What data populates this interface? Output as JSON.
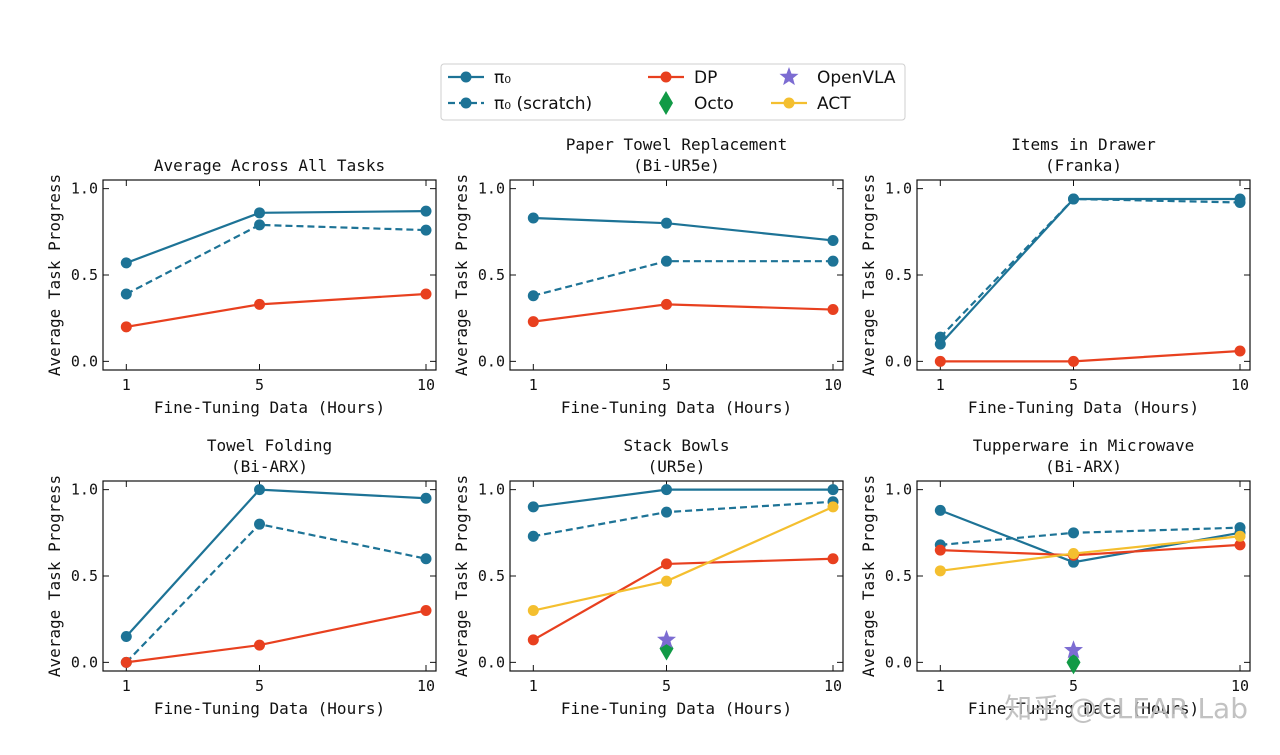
{
  "legend": {
    "entries": [
      {
        "label": "π₀",
        "color": "#1d7396",
        "style": "solid",
        "marker": "circle"
      },
      {
        "label": "π₀ (scratch)",
        "color": "#1d7396",
        "style": "dashed",
        "marker": "circle"
      },
      {
        "label": "DP",
        "color": "#e8401f",
        "style": "solid",
        "marker": "circle"
      },
      {
        "label": "Octo",
        "color": "#119a46",
        "style": "none",
        "marker": "diamond"
      },
      {
        "label": "OpenVLA",
        "color": "#7c6cd2",
        "style": "none",
        "marker": "star"
      },
      {
        "label": "ACT",
        "color": "#f4bf2f",
        "style": "solid",
        "marker": "circle"
      }
    ]
  },
  "watermark": "知乎 @CLEAR Lab",
  "chart_data": [
    {
      "type": "line",
      "title": [
        "Average Across All Tasks"
      ],
      "xlabel": "Fine-Tuning Data (Hours)",
      "ylabel": "Average Task Progress",
      "x": [
        1,
        5,
        10
      ],
      "xticks": [
        "1",
        "5",
        "10"
      ],
      "yticks": [
        "0.0",
        "0.5",
        "1.0"
      ],
      "ylim": [
        -0.05,
        1.05
      ],
      "series": [
        {
          "name": "π₀",
          "values": [
            0.57,
            0.86,
            0.87
          ]
        },
        {
          "name": "π₀ (scratch)",
          "values": [
            0.39,
            0.79,
            0.76
          ]
        },
        {
          "name": "DP",
          "values": [
            0.2,
            0.33,
            0.39
          ]
        }
      ]
    },
    {
      "type": "line",
      "title": [
        "Paper Towel Replacement",
        "(Bi-UR5e)"
      ],
      "xlabel": "Fine-Tuning Data (Hours)",
      "ylabel": "Average Task Progress",
      "x": [
        1,
        5,
        10
      ],
      "xticks": [
        "1",
        "5",
        "10"
      ],
      "yticks": [
        "0.0",
        "0.5",
        "1.0"
      ],
      "ylim": [
        -0.05,
        1.05
      ],
      "series": [
        {
          "name": "π₀",
          "values": [
            0.83,
            0.8,
            0.7
          ]
        },
        {
          "name": "π₀ (scratch)",
          "values": [
            0.38,
            0.58,
            0.58
          ]
        },
        {
          "name": "DP",
          "values": [
            0.23,
            0.33,
            0.3
          ]
        }
      ]
    },
    {
      "type": "line",
      "title": [
        "Items in Drawer",
        "(Franka)"
      ],
      "xlabel": "Fine-Tuning Data (Hours)",
      "ylabel": "Average Task Progress",
      "x": [
        1,
        5,
        10
      ],
      "xticks": [
        "1",
        "5",
        "10"
      ],
      "yticks": [
        "0.0",
        "0.5",
        "1.0"
      ],
      "ylim": [
        -0.05,
        1.05
      ],
      "series": [
        {
          "name": "π₀",
          "values": [
            0.1,
            0.94,
            0.94
          ]
        },
        {
          "name": "π₀ (scratch)",
          "values": [
            0.14,
            0.94,
            0.92
          ]
        },
        {
          "name": "DP",
          "values": [
            0.0,
            0.0,
            0.06
          ]
        }
      ]
    },
    {
      "type": "line",
      "title": [
        "Towel Folding",
        "(Bi-ARX)"
      ],
      "xlabel": "Fine-Tuning Data (Hours)",
      "ylabel": "Average Task Progress",
      "x": [
        1,
        5,
        10
      ],
      "xticks": [
        "1",
        "5",
        "10"
      ],
      "yticks": [
        "0.0",
        "0.5",
        "1.0"
      ],
      "ylim": [
        -0.05,
        1.05
      ],
      "series": [
        {
          "name": "π₀",
          "values": [
            0.15,
            1.0,
            0.95
          ]
        },
        {
          "name": "π₀ (scratch)",
          "values": [
            0.0,
            0.8,
            0.6
          ]
        },
        {
          "name": "DP",
          "values": [
            0.0,
            0.1,
            0.3
          ]
        }
      ]
    },
    {
      "type": "line",
      "title": [
        "Stack Bowls",
        "(UR5e)"
      ],
      "xlabel": "Fine-Tuning Data (Hours)",
      "ylabel": "Average Task Progress",
      "x": [
        1,
        5,
        10
      ],
      "xticks": [
        "1",
        "5",
        "10"
      ],
      "yticks": [
        "0.0",
        "0.5",
        "1.0"
      ],
      "ylim": [
        -0.05,
        1.05
      ],
      "series": [
        {
          "name": "π₀",
          "values": [
            0.9,
            1.0,
            1.0
          ]
        },
        {
          "name": "π₀ (scratch)",
          "values": [
            0.73,
            0.87,
            0.93
          ]
        },
        {
          "name": "DP",
          "values": [
            0.13,
            0.57,
            0.6
          ]
        },
        {
          "name": "ACT",
          "values": [
            0.3,
            0.47,
            0.9
          ]
        }
      ],
      "points": [
        {
          "name": "Octo",
          "x": 5,
          "y": 0.08
        },
        {
          "name": "OpenVLA",
          "x": 5,
          "y": 0.13
        }
      ]
    },
    {
      "type": "line",
      "title": [
        "Tupperware in Microwave",
        "(Bi-ARX)"
      ],
      "xlabel": "Fine-Tuning Data (Hours)",
      "ylabel": "Average Task Progress",
      "x": [
        1,
        5,
        10
      ],
      "xticks": [
        "1",
        "5",
        "10"
      ],
      "yticks": [
        "0.0",
        "0.5",
        "1.0"
      ],
      "ylim": [
        -0.05,
        1.05
      ],
      "series": [
        {
          "name": "π₀",
          "values": [
            0.88,
            0.58,
            0.75
          ]
        },
        {
          "name": "π₀ (scratch)",
          "values": [
            0.68,
            0.75,
            0.78
          ]
        },
        {
          "name": "DP",
          "values": [
            0.65,
            0.62,
            0.68
          ]
        },
        {
          "name": "ACT",
          "values": [
            0.53,
            0.63,
            0.73
          ]
        }
      ],
      "points": [
        {
          "name": "Octo",
          "x": 5,
          "y": 0.0
        },
        {
          "name": "OpenVLA",
          "x": 5,
          "y": 0.07
        }
      ]
    }
  ]
}
